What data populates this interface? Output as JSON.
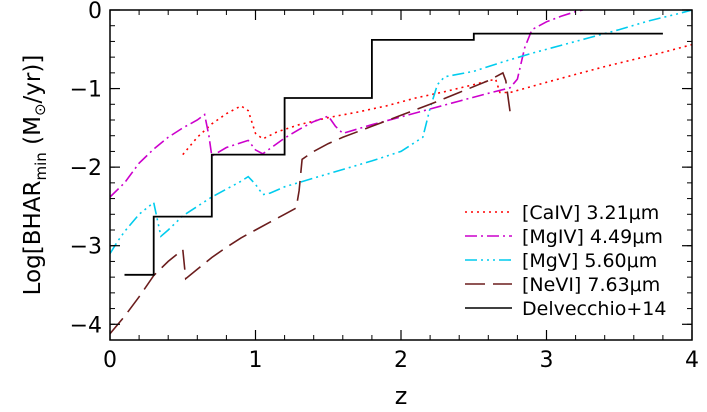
{
  "chart_data": {
    "type": "line",
    "title": "",
    "xlabel": "z",
    "ylabel_main": "Log[BHAR",
    "ylabel_sub": "min",
    "ylabel_rest": "(M",
    "ylabel_sun": "⊙",
    "ylabel_unit": "/yr)]",
    "xlim": [
      0,
      4
    ],
    "ylim": [
      -4.2,
      0
    ],
    "xticks": [
      0,
      1,
      2,
      3,
      4
    ],
    "xtick_labels": [
      "0",
      "1",
      "2",
      "3",
      "4"
    ],
    "yticks": [
      -4,
      -3,
      -2,
      -1,
      0
    ],
    "ytick_labels": [
      "−4",
      "−3",
      "−2",
      "−1",
      "0"
    ],
    "legend_position": "bottom-right",
    "series": [
      {
        "name": "[CaIV] 3.21μm",
        "color": "#ff0000",
        "dash": "dot",
        "points": [
          [
            0.5,
            -1.84
          ],
          [
            0.6,
            -1.62
          ],
          [
            0.7,
            -1.45
          ],
          [
            0.8,
            -1.32
          ],
          [
            0.9,
            -1.22
          ],
          [
            0.95,
            -1.28
          ],
          [
            1.0,
            -1.57
          ],
          [
            1.05,
            -1.64
          ],
          [
            1.15,
            -1.55
          ],
          [
            1.3,
            -1.46
          ],
          [
            1.5,
            -1.37
          ],
          [
            1.7,
            -1.3
          ],
          [
            1.9,
            -1.22
          ],
          [
            2.1,
            -1.12
          ],
          [
            2.3,
            -1.04
          ],
          [
            2.5,
            -0.95
          ],
          [
            2.65,
            -0.88
          ],
          [
            2.68,
            -1.05
          ],
          [
            2.75,
            -1.05
          ],
          [
            3.0,
            -0.92
          ],
          [
            3.2,
            -0.82
          ],
          [
            3.4,
            -0.72
          ],
          [
            3.6,
            -0.63
          ],
          [
            3.8,
            -0.54
          ],
          [
            4.0,
            -0.44
          ]
        ]
      },
      {
        "name": "[MgIV] 4.49μm",
        "color": "#cc00cc",
        "dash": "dashdot",
        "points": [
          [
            0.0,
            -2.38
          ],
          [
            0.1,
            -2.2
          ],
          [
            0.2,
            -1.95
          ],
          [
            0.3,
            -1.77
          ],
          [
            0.4,
            -1.62
          ],
          [
            0.5,
            -1.5
          ],
          [
            0.6,
            -1.4
          ],
          [
            0.65,
            -1.33
          ],
          [
            0.68,
            -1.6
          ],
          [
            0.7,
            -1.86
          ],
          [
            0.8,
            -1.75
          ],
          [
            0.95,
            -1.66
          ],
          [
            1.0,
            -1.78
          ],
          [
            1.05,
            -1.83
          ],
          [
            1.2,
            -1.63
          ],
          [
            1.3,
            -1.52
          ],
          [
            1.4,
            -1.42
          ],
          [
            1.5,
            -1.35
          ],
          [
            1.55,
            -1.48
          ],
          [
            1.6,
            -1.57
          ],
          [
            1.8,
            -1.46
          ],
          [
            2.0,
            -1.36
          ],
          [
            2.2,
            -1.26
          ],
          [
            2.4,
            -1.16
          ],
          [
            2.6,
            -1.06
          ],
          [
            2.75,
            -0.99
          ],
          [
            2.8,
            -0.88
          ],
          [
            2.85,
            -0.48
          ],
          [
            2.9,
            -0.25
          ],
          [
            3.0,
            -0.15
          ],
          [
            3.1,
            -0.08
          ],
          [
            3.2,
            -0.02
          ],
          [
            3.25,
            0.0
          ]
        ]
      },
      {
        "name": "[MgV] 5.60μm",
        "color": "#00ccee",
        "dash": "dashdotdotdot",
        "points": [
          [
            0.0,
            -3.1
          ],
          [
            0.05,
            -2.95
          ],
          [
            0.1,
            -2.82
          ],
          [
            0.2,
            -2.6
          ],
          [
            0.3,
            -2.45
          ],
          [
            0.35,
            -2.88
          ],
          [
            0.4,
            -2.8
          ],
          [
            0.5,
            -2.62
          ],
          [
            0.6,
            -2.5
          ],
          [
            0.7,
            -2.38
          ],
          [
            0.8,
            -2.28
          ],
          [
            0.9,
            -2.18
          ],
          [
            0.95,
            -2.12
          ],
          [
            1.0,
            -2.22
          ],
          [
            1.05,
            -2.35
          ],
          [
            1.1,
            -2.33
          ],
          [
            1.2,
            -2.25
          ],
          [
            1.4,
            -2.14
          ],
          [
            1.6,
            -2.03
          ],
          [
            1.8,
            -1.92
          ],
          [
            2.0,
            -1.8
          ],
          [
            2.15,
            -1.62
          ],
          [
            2.2,
            -1.25
          ],
          [
            2.25,
            -0.95
          ],
          [
            2.3,
            -0.85
          ],
          [
            2.5,
            -0.78
          ],
          [
            2.7,
            -0.66
          ],
          [
            2.9,
            -0.55
          ],
          [
            3.1,
            -0.45
          ],
          [
            3.3,
            -0.35
          ],
          [
            3.5,
            -0.25
          ],
          [
            3.7,
            -0.14
          ],
          [
            3.9,
            -0.05
          ],
          [
            4.0,
            0.0
          ]
        ]
      },
      {
        "name": "[NeVI] 7.63μm",
        "color": "#6b1d1d",
        "dash": "longdash",
        "points": [
          [
            0.0,
            -4.12
          ],
          [
            0.1,
            -3.9
          ],
          [
            0.2,
            -3.65
          ],
          [
            0.3,
            -3.38
          ],
          [
            0.4,
            -3.2
          ],
          [
            0.5,
            -3.05
          ],
          [
            0.52,
            -3.42
          ],
          [
            0.6,
            -3.3
          ],
          [
            0.7,
            -3.15
          ],
          [
            0.8,
            -3.02
          ],
          [
            0.9,
            -2.9
          ],
          [
            1.0,
            -2.8
          ],
          [
            1.1,
            -2.7
          ],
          [
            1.2,
            -2.6
          ],
          [
            1.28,
            -2.52
          ],
          [
            1.3,
            -2.3
          ],
          [
            1.32,
            -1.9
          ],
          [
            1.4,
            -1.8
          ],
          [
            1.5,
            -1.7
          ],
          [
            1.6,
            -1.62
          ],
          [
            1.8,
            -1.48
          ],
          [
            2.0,
            -1.34
          ],
          [
            2.2,
            -1.2
          ],
          [
            2.4,
            -1.05
          ],
          [
            2.6,
            -0.9
          ],
          [
            2.7,
            -0.8
          ],
          [
            2.72,
            -0.9
          ],
          [
            2.75,
            -1.3
          ]
        ]
      },
      {
        "name": "Delvecchio+14",
        "color": "#000000",
        "dash": "solid",
        "points": [
          [
            0.1,
            -3.37
          ],
          [
            0.3,
            -3.37
          ],
          [
            0.3,
            -2.63
          ],
          [
            0.7,
            -2.63
          ],
          [
            0.7,
            -1.84
          ],
          [
            1.2,
            -1.84
          ],
          [
            1.2,
            -1.12
          ],
          [
            1.8,
            -1.12
          ],
          [
            1.8,
            -0.38
          ],
          [
            2.5,
            -0.38
          ],
          [
            2.5,
            -0.3
          ],
          [
            3.8,
            -0.3
          ]
        ]
      }
    ]
  }
}
